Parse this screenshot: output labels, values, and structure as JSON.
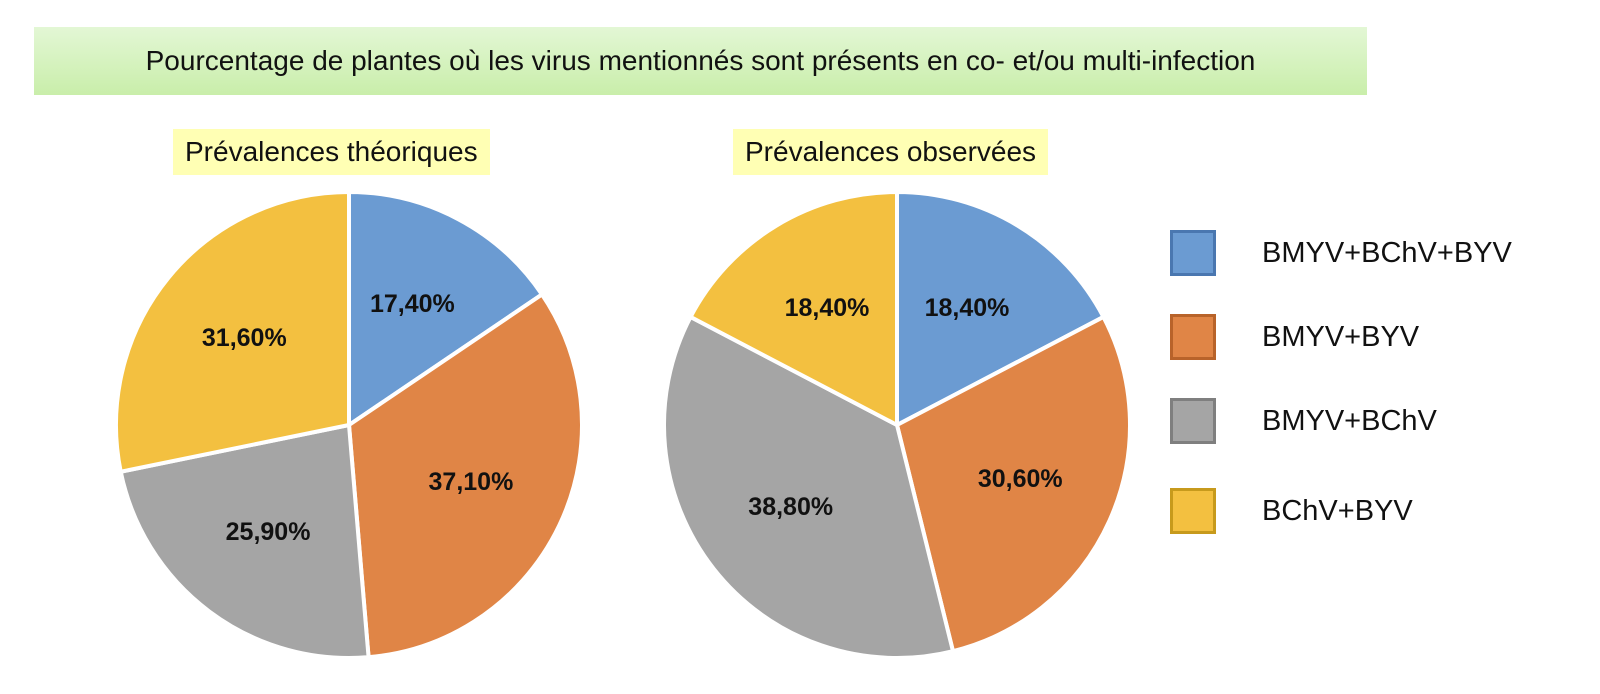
{
  "colors": {
    "BMYV+BChV+BYV": "#6b9bd2",
    "BMYV+BYV": "#e08546",
    "BMYV+BChV": "#a5a5a5",
    "BChV+BYV": "#f3c040"
  },
  "chart_data": {
    "type": "pie",
    "title": "Pourcentage de plantes où les virus mentionnés sont présents en co- et/ou multi-infection",
    "legend": {
      "placement": "right",
      "entries": [
        "BMYV+BChV+BYV",
        "BMYV+BYV",
        "BMYV+BChV",
        "BChV+BYV"
      ]
    },
    "charts": [
      {
        "subtitle": "Prévalences théoriques",
        "slices": [
          {
            "category": "BMYV+BChV+BYV",
            "value": 17.4,
            "label": "17,40%"
          },
          {
            "category": "BMYV+BYV",
            "value": 37.1,
            "label": "37,10%"
          },
          {
            "category": "BMYV+BChV",
            "value": 25.9,
            "label": "25,90%"
          },
          {
            "category": "BChV+BYV",
            "value": 31.6,
            "label": "31,60%"
          }
        ]
      },
      {
        "subtitle": "Prévalences observées",
        "slices": [
          {
            "category": "BMYV+BChV+BYV",
            "value": 18.4,
            "label": "18,40%"
          },
          {
            "category": "BMYV+BYV",
            "value": 30.6,
            "label": "30,60%"
          },
          {
            "category": "BMYV+BChV",
            "value": 38.8,
            "label": "38,80%"
          },
          {
            "category": "BChV+BYV",
            "value": 18.4,
            "label": "18,40%"
          }
        ]
      }
    ]
  }
}
